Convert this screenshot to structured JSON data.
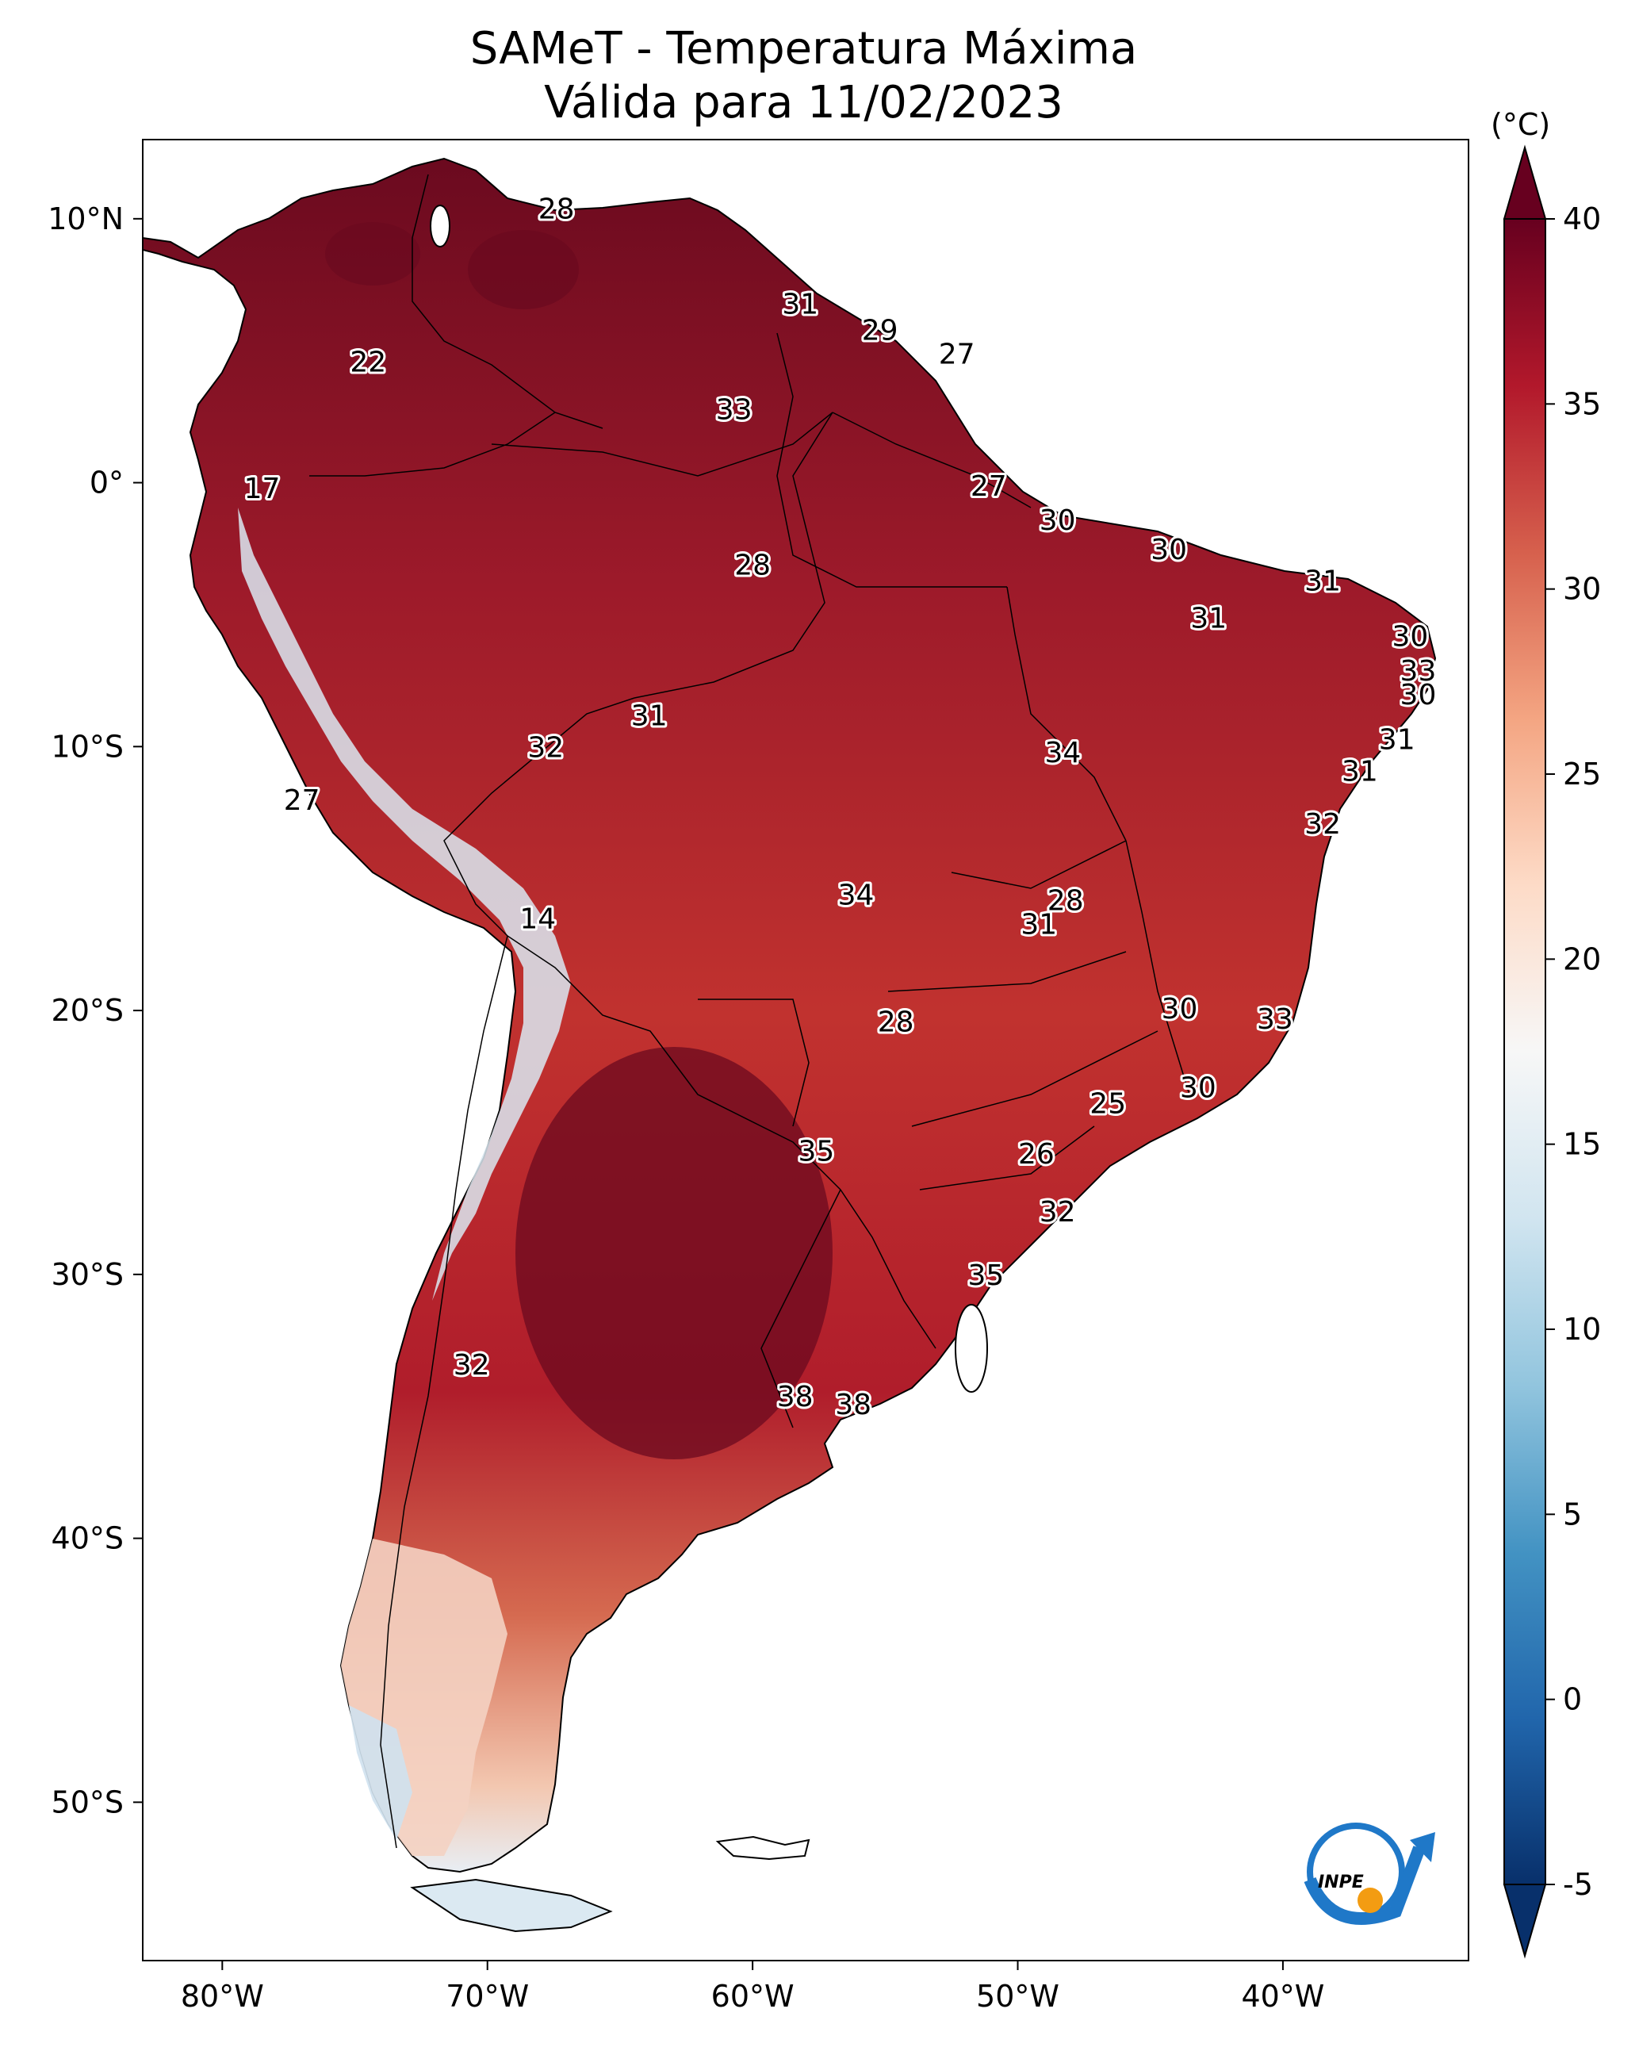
{
  "title": {
    "line1": "SAMeT - Temperatura Máxima",
    "line2": "Válida para 11/02/2023"
  },
  "map_extent": {
    "lon_min": -83,
    "lon_max": -33,
    "lat_min": -56,
    "lat_max": 13
  },
  "axes": {
    "lon_ticks": [
      {
        "lon": -80,
        "label": "80°W"
      },
      {
        "lon": -70,
        "label": "70°W"
      },
      {
        "lon": -60,
        "label": "60°W"
      },
      {
        "lon": -50,
        "label": "50°W"
      },
      {
        "lon": -40,
        "label": "40°W"
      }
    ],
    "lat_ticks": [
      {
        "lat": 10,
        "label": "10°N"
      },
      {
        "lat": 0,
        "label": "0°"
      },
      {
        "lat": -10,
        "label": "10°S"
      },
      {
        "lat": -20,
        "label": "20°S"
      },
      {
        "lat": -30,
        "label": "30°S"
      },
      {
        "lat": -40,
        "label": "40°S"
      },
      {
        "lat": -50,
        "label": "50°S"
      }
    ]
  },
  "colorbar": {
    "unit": "(°C)",
    "min": -5,
    "max": 40,
    "ticks": [
      "-5",
      "0",
      "5",
      "10",
      "15",
      "20",
      "25",
      "30",
      "35",
      "40"
    ],
    "colors": [
      "#08306b",
      "#2166ac",
      "#4393c3",
      "#92c5de",
      "#d1e5f0",
      "#f7f7f7",
      "#fddbc7",
      "#f4a582",
      "#d6604d",
      "#b2182b",
      "#67001f"
    ]
  },
  "city_values": [
    {
      "value": "28",
      "lon": -67.4,
      "lat": 10.4
    },
    {
      "value": "22",
      "lon": -74.5,
      "lat": 4.6
    },
    {
      "value": "31",
      "lon": -58.2,
      "lat": 6.8
    },
    {
      "value": "29",
      "lon": -55.2,
      "lat": 5.8
    },
    {
      "value": "27",
      "lon": -52.3,
      "lat": 4.9
    },
    {
      "value": "33",
      "lon": -60.7,
      "lat": 2.8
    },
    {
      "value": "17",
      "lon": -78.5,
      "lat": -0.2
    },
    {
      "value": "27",
      "lon": -51.1,
      "lat": -0.1
    },
    {
      "value": "30",
      "lon": -48.5,
      "lat": -1.4
    },
    {
      "value": "28",
      "lon": -60.0,
      "lat": -3.1
    },
    {
      "value": "30",
      "lon": -44.3,
      "lat": -2.5
    },
    {
      "value": "31",
      "lon": -38.5,
      "lat": -3.7
    },
    {
      "value": "31",
      "lon": -42.8,
      "lat": -5.1
    },
    {
      "value": "30",
      "lon": -35.2,
      "lat": -5.8
    },
    {
      "value": "33",
      "lon": -34.9,
      "lat": -7.1
    },
    {
      "value": "30",
      "lon": -34.9,
      "lat": -8.0
    },
    {
      "value": "31",
      "lon": -35.7,
      "lat": -9.7
    },
    {
      "value": "31",
      "lon": -37.1,
      "lat": -10.9
    },
    {
      "value": "32",
      "lon": -38.5,
      "lat": -12.9
    },
    {
      "value": "34",
      "lon": -48.3,
      "lat": -10.2
    },
    {
      "value": "31",
      "lon": -63.9,
      "lat": -8.8
    },
    {
      "value": "32",
      "lon": -67.8,
      "lat": -10.0
    },
    {
      "value": "27",
      "lon": -77.0,
      "lat": -12.0
    },
    {
      "value": "14",
      "lon": -68.1,
      "lat": -16.5
    },
    {
      "value": "34",
      "lon": -56.1,
      "lat": -15.6
    },
    {
      "value": "28",
      "lon": -48.2,
      "lat": -15.8
    },
    {
      "value": "31",
      "lon": -49.2,
      "lat": -16.7
    },
    {
      "value": "30",
      "lon": -43.9,
      "lat": -19.9
    },
    {
      "value": "33",
      "lon": -40.3,
      "lat": -20.3
    },
    {
      "value": "28",
      "lon": -54.6,
      "lat": -20.4
    },
    {
      "value": "25",
      "lon": -46.6,
      "lat": -23.5
    },
    {
      "value": "30",
      "lon": -43.2,
      "lat": -22.9
    },
    {
      "value": "35",
      "lon": -57.6,
      "lat": -25.3
    },
    {
      "value": "26",
      "lon": -49.3,
      "lat": -25.4
    },
    {
      "value": "32",
      "lon": -48.5,
      "lat": -27.6
    },
    {
      "value": "35",
      "lon": -51.2,
      "lat": -30.0
    },
    {
      "value": "32",
      "lon": -70.6,
      "lat": -33.4
    },
    {
      "value": "38",
      "lon": -58.4,
      "lat": -34.6
    },
    {
      "value": "38",
      "lon": -56.2,
      "lat": -34.9
    }
  ]
}
